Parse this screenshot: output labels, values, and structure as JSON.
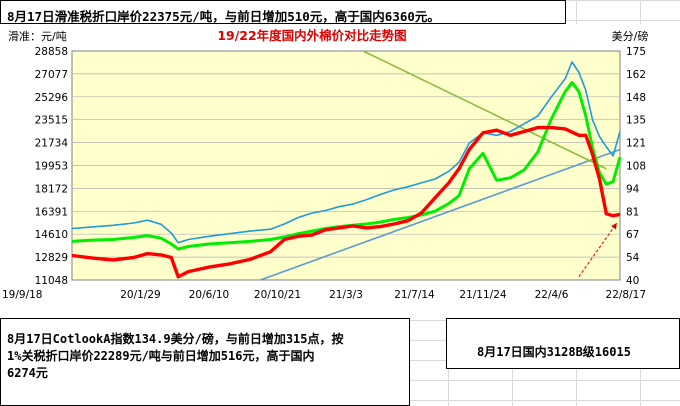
{
  "notes": {
    "top": "8月17日滑准税折口岸价22375元/吨，与前日增加510元，高于国内6360元。",
    "left_line1": "8月17日CotlookA指数134.9美分/磅，与前日增加315点，按",
    "left_line2": "1%关税折口岸价22289元/吨与前日增加516元，高于国内",
    "left_line3": "6274元",
    "right": "8月17日国内3128B级16015"
  },
  "chart_data": {
    "type": "line",
    "title": "19/22年度国内外棉价对比走势图",
    "ylabel_left": "滑准：元/吨",
    "ylabel_right": "美分/磅",
    "left_axis": {
      "min": 11048,
      "max": 28858,
      "ticks": [
        "28858",
        "27077",
        "25296",
        "23515",
        "21734",
        "19953",
        "18172",
        "16391",
        "14610",
        "12829",
        "11048"
      ]
    },
    "right_axis": {
      "min": 40,
      "max": 175,
      "ticks": [
        "175",
        "162",
        "148",
        "135",
        "121",
        "108",
        "94",
        "81",
        "67",
        "54",
        "40"
      ]
    },
    "x_tick_labels": [
      "19/9/18",
      "20/1/29",
      "20/6/10",
      "20/10/21",
      "21/3/3",
      "21/7/14",
      "21/11/24",
      "22/4/6",
      "22/8/17"
    ],
    "background": "#ffffcc",
    "grid": true,
    "series": [
      {
        "axis": "left",
        "color": "#1e9bdc",
        "points": [
          [
            0,
            15050
          ],
          [
            0.3,
            15180
          ],
          [
            0.6,
            15300
          ],
          [
            0.9,
            15480
          ],
          [
            1.1,
            15700
          ],
          [
            1.3,
            15380
          ],
          [
            1.45,
            14700
          ],
          [
            1.55,
            13950
          ],
          [
            1.7,
            14200
          ],
          [
            2.0,
            14450
          ],
          [
            2.3,
            14650
          ],
          [
            2.6,
            14850
          ],
          [
            2.9,
            15000
          ],
          [
            3.1,
            15400
          ],
          [
            3.3,
            15900
          ],
          [
            3.5,
            16250
          ],
          [
            3.7,
            16450
          ],
          [
            3.9,
            16750
          ],
          [
            4.1,
            16950
          ],
          [
            4.3,
            17300
          ],
          [
            4.5,
            17700
          ],
          [
            4.7,
            18050
          ],
          [
            4.9,
            18300
          ],
          [
            5.1,
            18600
          ],
          [
            5.3,
            18900
          ],
          [
            5.5,
            19500
          ],
          [
            5.65,
            20200
          ],
          [
            5.8,
            21700
          ],
          [
            6.0,
            22500
          ],
          [
            6.2,
            22300
          ],
          [
            6.4,
            22600
          ],
          [
            6.6,
            23200
          ],
          [
            6.8,
            23800
          ],
          [
            7.0,
            25300
          ],
          [
            7.2,
            26700
          ],
          [
            7.3,
            28000
          ],
          [
            7.4,
            27200
          ],
          [
            7.5,
            25800
          ],
          [
            7.6,
            23500
          ],
          [
            7.7,
            22200
          ],
          [
            7.8,
            21400
          ],
          [
            7.9,
            20700
          ],
          [
            8.0,
            22600
          ]
        ]
      },
      {
        "axis": "left",
        "color": "#00ee00",
        "points": [
          [
            0,
            14050
          ],
          [
            0.3,
            14150
          ],
          [
            0.6,
            14200
          ],
          [
            0.9,
            14350
          ],
          [
            1.1,
            14500
          ],
          [
            1.3,
            14300
          ],
          [
            1.45,
            13850
          ],
          [
            1.55,
            13450
          ],
          [
            1.7,
            13650
          ],
          [
            2.0,
            13850
          ],
          [
            2.3,
            13950
          ],
          [
            2.6,
            14050
          ],
          [
            2.9,
            14200
          ],
          [
            3.1,
            14400
          ],
          [
            3.3,
            14650
          ],
          [
            3.5,
            14850
          ],
          [
            3.7,
            15050
          ],
          [
            3.9,
            15200
          ],
          [
            4.1,
            15300
          ],
          [
            4.3,
            15400
          ],
          [
            4.5,
            15550
          ],
          [
            4.7,
            15750
          ],
          [
            4.9,
            15900
          ],
          [
            5.1,
            16100
          ],
          [
            5.3,
            16400
          ],
          [
            5.5,
            17000
          ],
          [
            5.65,
            17600
          ],
          [
            5.8,
            19700
          ],
          [
            6.0,
            20900
          ],
          [
            6.2,
            18800
          ],
          [
            6.4,
            19000
          ],
          [
            6.6,
            19600
          ],
          [
            6.8,
            21000
          ],
          [
            7.0,
            23600
          ],
          [
            7.2,
            25700
          ],
          [
            7.3,
            26400
          ],
          [
            7.4,
            25700
          ],
          [
            7.5,
            23800
          ],
          [
            7.6,
            21300
          ],
          [
            7.7,
            19400
          ],
          [
            7.8,
            18500
          ],
          [
            7.9,
            18700
          ],
          [
            8.0,
            20600
          ]
        ]
      },
      {
        "axis": "left",
        "color": "#ff0000",
        "points": [
          [
            0,
            12950
          ],
          [
            0.3,
            12750
          ],
          [
            0.6,
            12600
          ],
          [
            0.9,
            12800
          ],
          [
            1.1,
            13100
          ],
          [
            1.3,
            13000
          ],
          [
            1.45,
            12800
          ],
          [
            1.55,
            11300
          ],
          [
            1.7,
            11700
          ],
          [
            2.0,
            12050
          ],
          [
            2.3,
            12300
          ],
          [
            2.6,
            12650
          ],
          [
            2.9,
            13250
          ],
          [
            3.1,
            14200
          ],
          [
            3.3,
            14450
          ],
          [
            3.5,
            14550
          ],
          [
            3.7,
            14950
          ],
          [
            3.9,
            15100
          ],
          [
            4.1,
            15250
          ],
          [
            4.3,
            15100
          ],
          [
            4.5,
            15200
          ],
          [
            4.7,
            15400
          ],
          [
            4.9,
            15650
          ],
          [
            5.1,
            16250
          ],
          [
            5.3,
            17450
          ],
          [
            5.5,
            18600
          ],
          [
            5.65,
            19700
          ],
          [
            5.8,
            21200
          ],
          [
            6.0,
            22500
          ],
          [
            6.2,
            22700
          ],
          [
            6.4,
            22300
          ],
          [
            6.6,
            22600
          ],
          [
            6.8,
            22900
          ],
          [
            7.0,
            22900
          ],
          [
            7.2,
            22800
          ],
          [
            7.4,
            22300
          ],
          [
            7.5,
            22300
          ],
          [
            7.6,
            20800
          ],
          [
            7.7,
            18900
          ],
          [
            7.8,
            16200
          ],
          [
            7.9,
            16050
          ],
          [
            8.0,
            16150
          ]
        ]
      }
    ],
    "trendlines": [
      {
        "color": "#5b9bd5",
        "from": [
          2.75,
          11048
        ],
        "to": [
          8.0,
          21200
        ]
      },
      {
        "color": "#8fbc3f",
        "from": [
          4.25,
          28858
        ],
        "to": [
          7.8,
          19700
        ]
      },
      {
        "color": "#e00000",
        "style": "dashed-arrow",
        "from": [
          7.4,
          11300
        ],
        "to": [
          7.95,
          15450
        ]
      }
    ]
  }
}
